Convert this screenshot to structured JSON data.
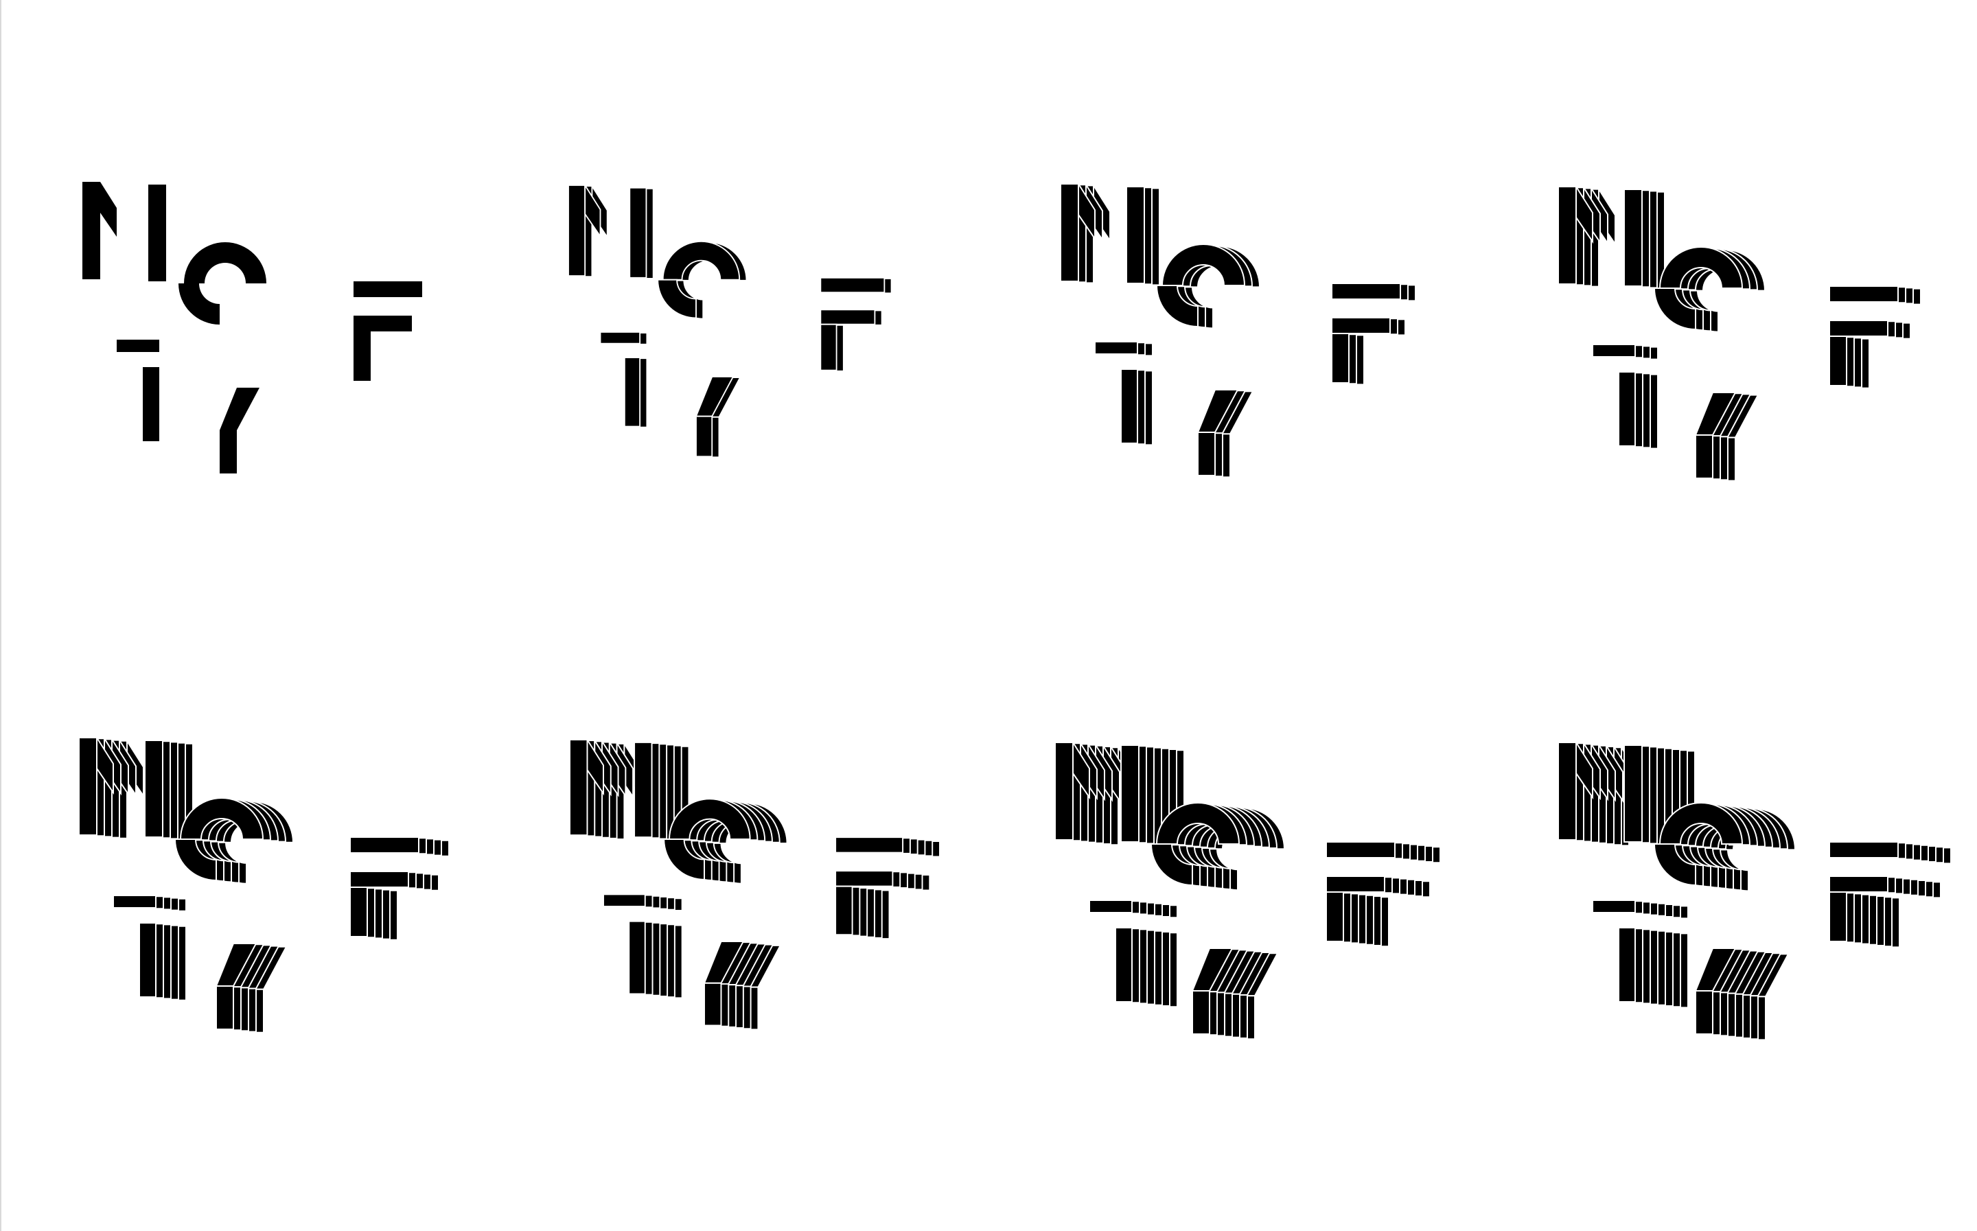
{
  "artwork": {
    "description_colors": {
      "ink": "#000000",
      "paper": "#ffffff",
      "gap": "#ffffff"
    },
    "glyph_letters": [
      "N",
      "O",
      "F",
      "T",
      "Y"
    ],
    "variants": [
      {
        "name": "variant-1",
        "layers": 1
      },
      {
        "name": "variant-2",
        "layers": 2
      },
      {
        "name": "variant-3",
        "layers": 3
      },
      {
        "name": "variant-4",
        "layers": 4
      },
      {
        "name": "variant-5",
        "layers": 5
      },
      {
        "name": "variant-6",
        "layers": 6
      },
      {
        "name": "variant-7",
        "layers": 7
      },
      {
        "name": "variant-8",
        "layers": 8
      }
    ]
  }
}
